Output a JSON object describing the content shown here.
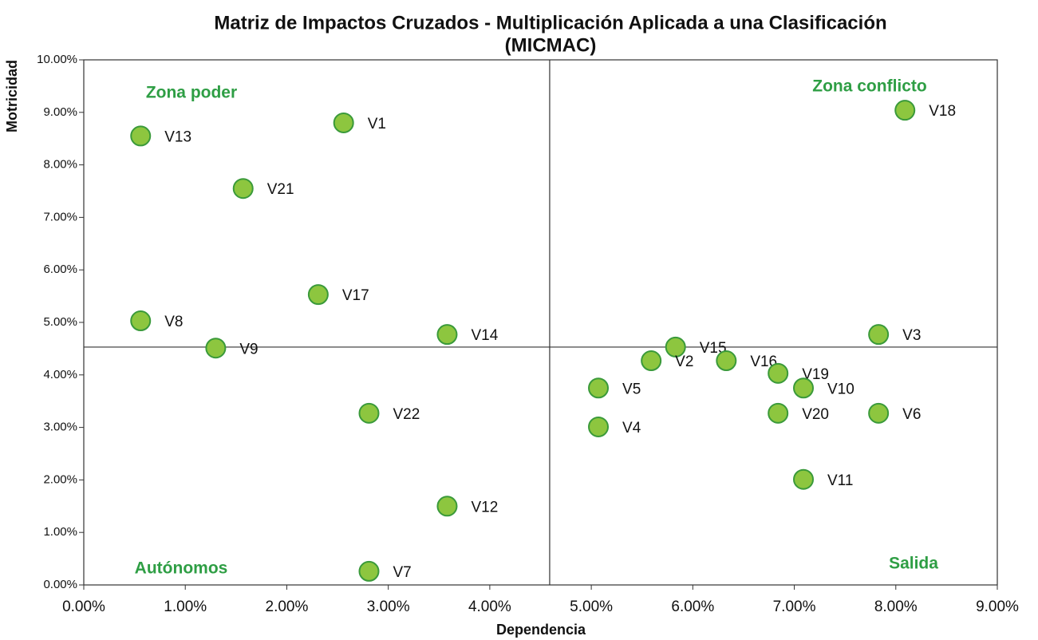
{
  "chart_data": {
    "type": "scatter",
    "title": [
      "Matriz de Impactos Cruzados - Multiplicación Aplicada a una Clasificación",
      "(MICMAC)"
    ],
    "x_label": "Dependencia",
    "y_label": "Motricidad",
    "xlim": [
      0,
      9
    ],
    "ylim": [
      0,
      10
    ],
    "xticks": [
      {
        "value": 0,
        "label": "0.00%"
      },
      {
        "value": 1,
        "label": "1.00%"
      },
      {
        "value": 2,
        "label": "2.00%"
      },
      {
        "value": 3,
        "label": "3.00%"
      },
      {
        "value": 4,
        "label": "4.00%"
      },
      {
        "value": 5,
        "label": "5.00%"
      },
      {
        "value": 6,
        "label": "6.00%"
      },
      {
        "value": 7,
        "label": "7.00%"
      },
      {
        "value": 8,
        "label": "8.00%"
      },
      {
        "value": 9,
        "label": "9.00%"
      }
    ],
    "yticks": [
      {
        "value": 0,
        "label": "0.00%"
      },
      {
        "value": 1,
        "label": "1.00%"
      },
      {
        "value": 2,
        "label": "2.00%"
      },
      {
        "value": 3,
        "label": "3.00%"
      },
      {
        "value": 4,
        "label": "4.00%"
      },
      {
        "value": 5,
        "label": "5.00%"
      },
      {
        "value": 6,
        "label": "6.00%"
      },
      {
        "value": 7,
        "label": "7.00%"
      },
      {
        "value": 8,
        "label": "8.00%"
      },
      {
        "value": 9,
        "label": "9.00%"
      },
      {
        "value": 10,
        "label": "10.00%"
      }
    ],
    "reference_lines": {
      "x": 4.59,
      "y": 4.53
    },
    "color": "#8dc63f",
    "edge_color": "#3a9a3a",
    "annotation_color": "#2e9e44",
    "annotations": [
      {
        "text": "Zona poder",
        "corner": "top-left"
      },
      {
        "text": "Zona conflicto",
        "corner": "top-right"
      },
      {
        "text": "Autónomos",
        "corner": "bottom-left"
      },
      {
        "text": "Salida",
        "corner": "bottom-right"
      }
    ],
    "points": [
      {
        "label": "V1",
        "x": 2.56,
        "y": 8.8
      },
      {
        "label": "V13",
        "x": 0.56,
        "y": 8.55
      },
      {
        "label": "V21",
        "x": 1.57,
        "y": 7.55
      },
      {
        "label": "V17",
        "x": 2.31,
        "y": 5.53
      },
      {
        "label": "V8",
        "x": 0.56,
        "y": 5.03
      },
      {
        "label": "V9",
        "x": 1.3,
        "y": 4.51
      },
      {
        "label": "V14",
        "x": 3.58,
        "y": 4.77
      },
      {
        "label": "V22",
        "x": 2.81,
        "y": 3.27
      },
      {
        "label": "V12",
        "x": 3.58,
        "y": 1.5
      },
      {
        "label": "V7",
        "x": 2.81,
        "y": 0.26
      },
      {
        "label": "V18",
        "x": 8.09,
        "y": 9.04
      },
      {
        "label": "V3",
        "x": 7.83,
        "y": 4.77
      },
      {
        "label": "V15",
        "x": 5.83,
        "y": 4.53
      },
      {
        "label": "V2",
        "x": 5.59,
        "y": 4.27
      },
      {
        "label": "V16",
        "x": 6.33,
        "y": 4.27
      },
      {
        "label": "V19",
        "x": 6.84,
        "y": 4.03
      },
      {
        "label": "V10",
        "x": 7.09,
        "y": 3.75
      },
      {
        "label": "V5",
        "x": 5.07,
        "y": 3.75
      },
      {
        "label": "V4",
        "x": 5.07,
        "y": 3.01
      },
      {
        "label": "V20",
        "x": 6.84,
        "y": 3.27
      },
      {
        "label": "V6",
        "x": 7.83,
        "y": 3.27
      },
      {
        "label": "V11",
        "x": 7.09,
        "y": 2.01
      }
    ]
  }
}
